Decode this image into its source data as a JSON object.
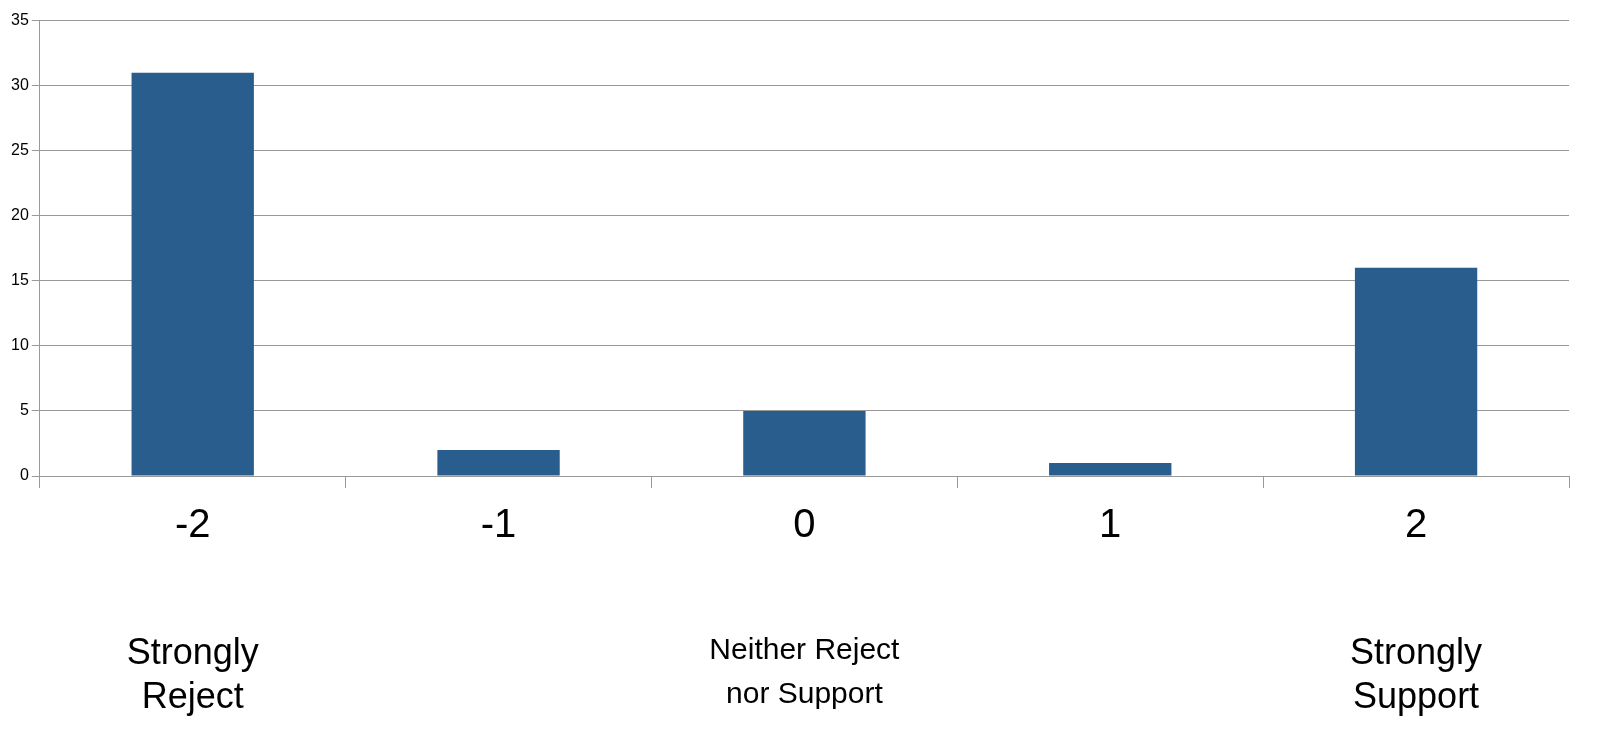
{
  "chart_data": {
    "type": "bar",
    "categories": [
      "-2",
      "-1",
      "0",
      "1",
      "2"
    ],
    "values": [
      31,
      2,
      5,
      1,
      16
    ],
    "color": "#285d8d",
    "ylim": [
      0,
      35
    ],
    "yticks": [
      0,
      5,
      10,
      15,
      20,
      25,
      30,
      35
    ],
    "grid": "y",
    "legend": false,
    "annotations": [
      "Strongly Reject",
      "Neither Reject nor Support",
      "Strongly Support"
    ]
  }
}
